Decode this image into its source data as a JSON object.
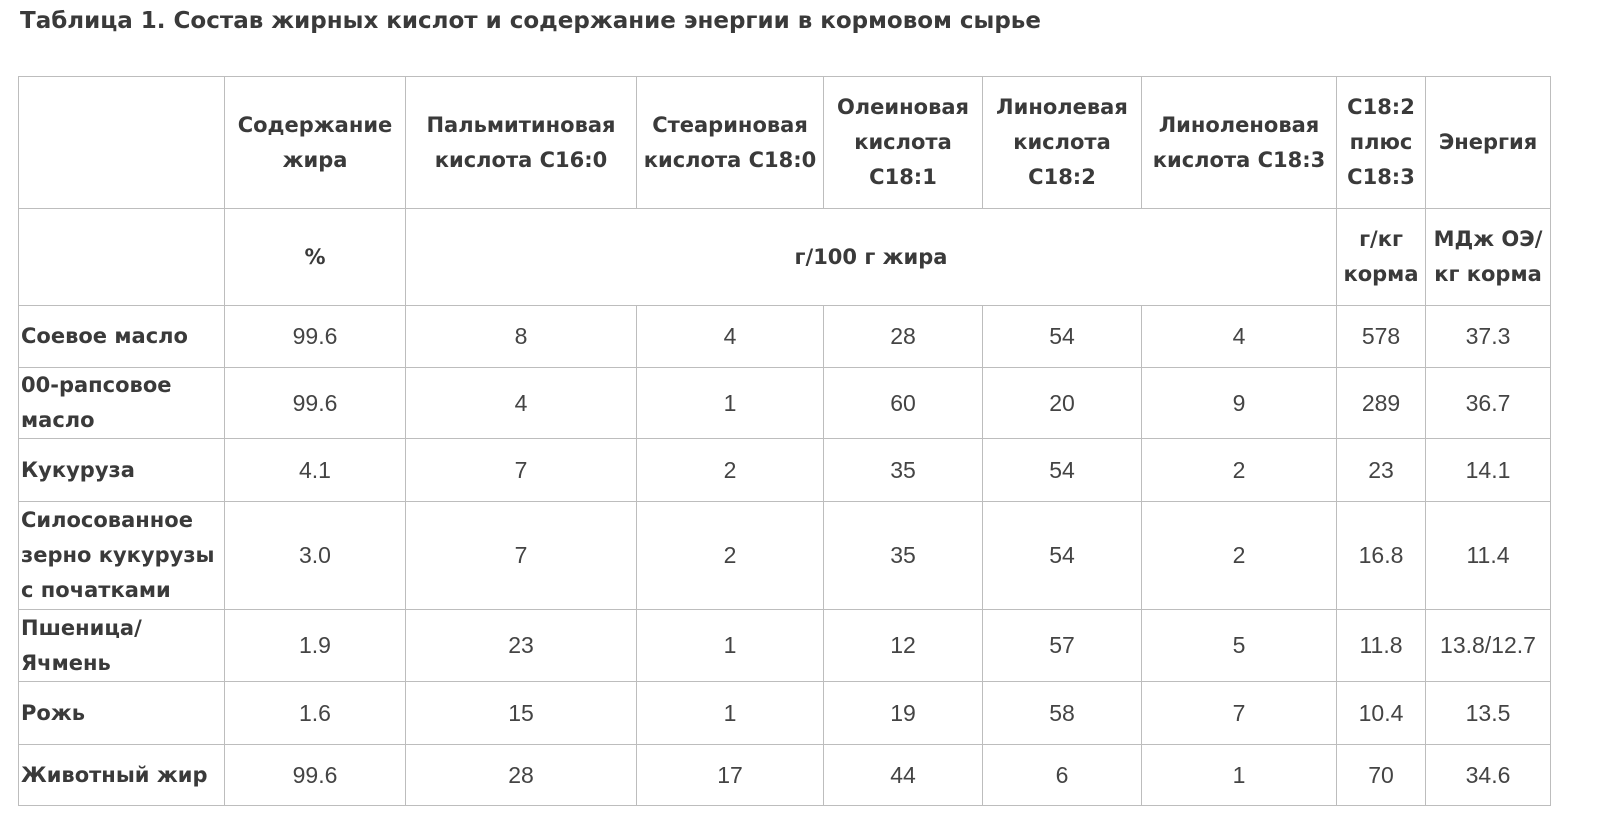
{
  "caption": "Таблица 1. Состав жирных кислот и содержание энергии в кормовом сырье",
  "header": {
    "corner": "",
    "columns": [
      "Содержание\nжира",
      "Пальмитиновая\nкислота C16:0",
      "Стеариновая\nкислота C18:0",
      "Олеиновая\nкислота\nC18:1",
      "Линолевая\nкислота\nC18:2",
      "Линоленовая\nкислота C18:3",
      "C18:2\nплюс\nC18:3",
      "Энергия"
    ]
  },
  "units": {
    "corner": "",
    "fat": "%",
    "acids": "г/100 г жира",
    "sum": "г/кг\nкорма",
    "energy": "МДж ОЭ/\nкг корма"
  },
  "rows": [
    {
      "label": "Соевое масло",
      "values": [
        "99.6",
        "8",
        "4",
        "28",
        "54",
        "4",
        "578",
        "37.3"
      ]
    },
    {
      "label": "00-рапсовое\nмасло",
      "values": [
        "99.6",
        "4",
        "1",
        "60",
        "20",
        "9",
        "289",
        "36.7"
      ]
    },
    {
      "label": "Кукуруза",
      "values": [
        "4.1",
        "7",
        "2",
        "35",
        "54",
        "2",
        "23",
        "14.1"
      ]
    },
    {
      "label": "Силосованное\nзерно  кукурузы\nс початками",
      "values": [
        "3.0",
        "7",
        "2",
        "35",
        "54",
        "2",
        "16.8",
        "11.4"
      ]
    },
    {
      "label": "Пшеница/\nЯчмень",
      "values": [
        "1.9",
        "23",
        "1",
        "12",
        "57",
        "5",
        "11.8",
        "13.8/12.7"
      ]
    },
    {
      "label": "Рожь",
      "values": [
        "1.6",
        "15",
        "1",
        "19",
        "58",
        "7",
        "10.4",
        "13.5"
      ]
    },
    {
      "label": "Животный жир",
      "values": [
        "99.6",
        "28",
        "17",
        "44",
        "6",
        "1",
        "70",
        "34.6"
      ]
    }
  ]
}
